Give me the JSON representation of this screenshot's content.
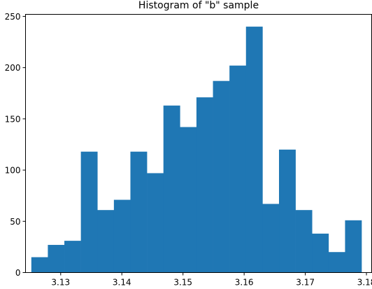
{
  "chart_data": {
    "type": "bar",
    "title": "Histogram of \"b\" sample",
    "xlabel": "",
    "ylabel": "",
    "xlim": [
      3.12425,
      3.18085
    ],
    "ylim": [
      0,
      252
    ],
    "bin_edges": [
      3.1252,
      3.1279,
      3.1306,
      3.1333,
      3.136,
      3.1387,
      3.1414,
      3.1441,
      3.1468,
      3.1495,
      3.1522,
      3.1549,
      3.1576,
      3.1603,
      3.163,
      3.1657,
      3.1684,
      3.1711,
      3.1738,
      3.1765,
      3.1792
    ],
    "counts": [
      15,
      27,
      31,
      118,
      61,
      71,
      118,
      97,
      163,
      142,
      171,
      187,
      202,
      240,
      67,
      120,
      61,
      38,
      20,
      51
    ],
    "xticks": [
      3.13,
      3.14,
      3.15,
      3.16,
      3.17,
      3.18
    ],
    "xtick_labels": [
      "3.13",
      "3.14",
      "3.15",
      "3.16",
      "3.17",
      "3.18"
    ],
    "yticks": [
      0,
      50,
      100,
      150,
      200,
      250
    ],
    "ytick_labels": [
      "0",
      "50",
      "100",
      "150",
      "200",
      "250"
    ],
    "bar_color": "#1f77b4",
    "grid": false,
    "legend": "none"
  }
}
